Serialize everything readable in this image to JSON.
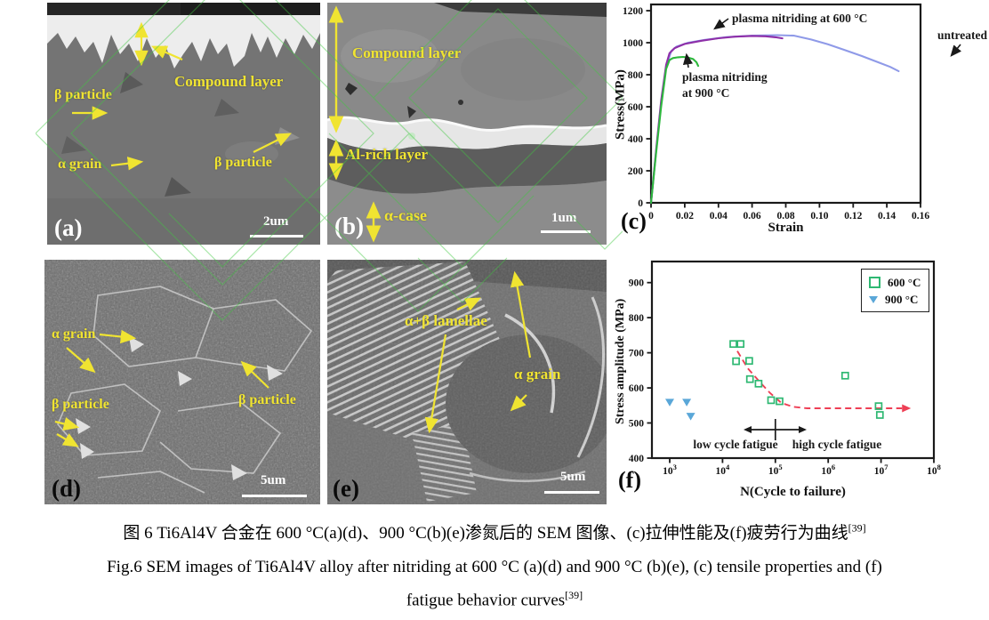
{
  "figure": {
    "captions": {
      "zh": "图 6 Ti6Al4V 合金在 600 °C(a)(d)、900 °C(b)(e)渗氮后的 SEM 图像、(c)拉伸性能及(f)疲劳行为曲线",
      "zh_ref": "[39]",
      "en": "Fig.6 SEM images of Ti6Al4V alloy after nitriding at 600 °C (a)(d) and 900 °C (b)(e), (c) tensile properties and (f)",
      "en2": "fatigue behavior curves",
      "en_ref": "[39]"
    }
  },
  "panels": {
    "a": {
      "letter": "(a)",
      "scalebar": "2um",
      "labels": {
        "compound_layer": "Compound layer",
        "beta_particle_left": "β particle",
        "alpha_grain": "α grain",
        "beta_particle_right": "β particle"
      }
    },
    "b": {
      "letter": "(b)",
      "scalebar": "1um",
      "labels": {
        "compound_layer": "Compound layer",
        "al_rich_layer": "Al-rich layer",
        "alpha_case": "α-case"
      }
    },
    "d": {
      "letter": "(d)",
      "scalebar": "5um",
      "labels": {
        "alpha_grain": "α grain",
        "beta_particle_left": "β particle",
        "beta_particle_right": "β particle"
      }
    },
    "e": {
      "letter": "(e)",
      "scalebar": "5um",
      "labels": {
        "lamellae": "α+β lamellae",
        "alpha_grain": "α grain"
      }
    }
  },
  "chart_data": [
    {
      "id": "tensile",
      "type": "line",
      "panel_letter": "(c)",
      "xlabel": "Strain",
      "ylabel": "Stress(MPa)",
      "xlim": [
        0,
        0.16
      ],
      "ylim": [
        0,
        1240
      ],
      "grid": false,
      "legend_position": "none",
      "xticks": [
        0,
        0.02,
        0.04,
        0.06,
        0.08,
        0.1,
        0.12,
        0.14,
        0.16
      ],
      "yticks": [
        0,
        200,
        400,
        600,
        800,
        1000,
        1200
      ],
      "series": [
        {
          "name": "untreated",
          "color": "#8f9ae8",
          "points": [
            [
              0,
              0
            ],
            [
              0.003,
              320
            ],
            [
              0.006,
              625
            ],
            [
              0.009,
              850
            ],
            [
              0.012,
              948
            ],
            [
              0.015,
              975
            ],
            [
              0.022,
              1000
            ],
            [
              0.032,
              1018
            ],
            [
              0.045,
              1035
            ],
            [
              0.06,
              1044
            ],
            [
              0.075,
              1047
            ],
            [
              0.085,
              1044
            ],
            [
              0.095,
              1020
            ],
            [
              0.105,
              990
            ],
            [
              0.115,
              954
            ],
            [
              0.125,
              917
            ],
            [
              0.135,
              877
            ],
            [
              0.142,
              849
            ],
            [
              0.147,
              822
            ]
          ]
        },
        {
          "name": "plasma nitriding at 600 °C",
          "color": "#8e2fa8",
          "points": [
            [
              0,
              0
            ],
            [
              0.003,
              330
            ],
            [
              0.006,
              640
            ],
            [
              0.009,
              862
            ],
            [
              0.011,
              935
            ],
            [
              0.014,
              966
            ],
            [
              0.02,
              992
            ],
            [
              0.03,
              1012
            ],
            [
              0.04,
              1028
            ],
            [
              0.05,
              1038
            ],
            [
              0.06,
              1042
            ],
            [
              0.068,
              1040
            ],
            [
              0.074,
              1034
            ],
            [
              0.078,
              1027
            ]
          ]
        },
        {
          "name": "plasma nitriding at 900 °C",
          "color": "#2db83d",
          "points": [
            [
              0,
              0
            ],
            [
              0.003,
              310
            ],
            [
              0.006,
              602
            ],
            [
              0.009,
              836
            ],
            [
              0.011,
              892
            ],
            [
              0.013,
              904
            ],
            [
              0.016,
              909
            ],
            [
              0.019,
              911
            ],
            [
              0.022,
              907
            ],
            [
              0.025,
              898
            ],
            [
              0.027,
              878
            ],
            [
              0.028,
              855
            ]
          ]
        }
      ],
      "annotations": [
        "plasma nitriding at 600 °C",
        "untreated",
        "plasma nitriding",
        "at 900 °C"
      ]
    },
    {
      "id": "fatigue",
      "type": "scatter",
      "panel_letter": "(f)",
      "xlabel": "N(Cycle to failure)",
      "ylabel": "Stress amplitude (MPa)",
      "xscale": "log",
      "xtick_exponents": [
        3,
        4,
        5,
        6,
        7,
        8
      ],
      "ylim": [
        400,
        960
      ],
      "yticks": [
        400,
        500,
        600,
        700,
        800,
        900
      ],
      "legend": {
        "position": "top-right",
        "entries": [
          {
            "label": "600 °C",
            "marker": "open-square",
            "color": "#2eb872"
          },
          {
            "label": "900 °C",
            "marker": "triangle-down",
            "color": "#5aa7d8"
          }
        ]
      },
      "series": [
        {
          "name": "600 °C",
          "marker": "open-square",
          "color": "#2eb872",
          "points": [
            [
              16000,
              725
            ],
            [
              22000,
              725
            ],
            [
              18000,
              676
            ],
            [
              32000,
              677
            ],
            [
              33000,
              625
            ],
            [
              48000,
              612
            ],
            [
              83000,
              565
            ],
            [
              120000,
              562
            ],
            [
              2100000,
              635
            ],
            [
              9000000,
              548
            ],
            [
              9500000,
              523
            ]
          ]
        },
        {
          "name": "900 °C",
          "marker": "triangle-down",
          "color": "#5aa7d8",
          "points": [
            [
              1000,
              560
            ],
            [
              2100,
              560
            ],
            [
              2500,
              520
            ]
          ]
        }
      ],
      "trendline": {
        "color": "#ee3f55",
        "style": "dashed",
        "points": [
          [
            19000,
            705
          ],
          [
            30000,
            656
          ],
          [
            50000,
            618
          ],
          [
            80000,
            585
          ],
          [
            130000,
            557
          ],
          [
            220000,
            546
          ],
          [
            400000,
            542
          ],
          [
            25000000,
            542
          ]
        ]
      },
      "annotations": [
        "low cycle fatigue",
        "high cycle fatigue"
      ]
    }
  ]
}
